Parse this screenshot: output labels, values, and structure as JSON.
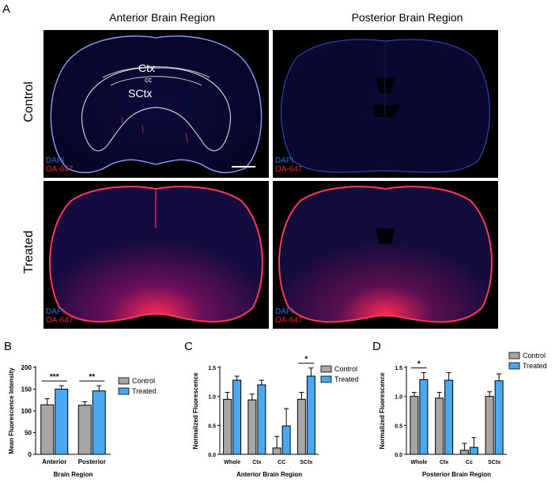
{
  "figure": {
    "panel_a": {
      "letter": "A",
      "col_titles": [
        "Anterior Brain Region",
        "Posterior Brain Region"
      ],
      "row_labels": [
        "Control",
        "Treated"
      ],
      "stain_dapi": "DAPI",
      "stain_oa": "OA-647",
      "regions": {
        "ctx": "Ctx",
        "cc": "cc",
        "sctx": "SCtx"
      },
      "colors": {
        "dapi": "#2f6fe0",
        "oa": "#e8232e"
      }
    }
  },
  "chart_data": [
    {
      "type": "bar",
      "panel": "B",
      "categories": [
        "Anterior",
        "Posterior"
      ],
      "series": [
        {
          "name": "Control",
          "values": [
            114,
            113
          ],
          "errors": [
            14,
            8
          ],
          "color": "#a6a6a6"
        },
        {
          "name": "Treated",
          "values": [
            150,
            146
          ],
          "errors": [
            8,
            12
          ],
          "color": "#4aa8f0"
        }
      ],
      "xlabel": "Brain Region",
      "ylabel": "Mean Fluorescence Intensity",
      "ylim": [
        0,
        200
      ],
      "yticks": [
        "0",
        "50",
        "100",
        "150",
        "200"
      ],
      "significance": [
        "***",
        "**"
      ],
      "legend_placement": "right"
    },
    {
      "type": "bar",
      "panel": "C",
      "categories": [
        "Whole",
        "Ctx",
        "CC",
        "SCtx"
      ],
      "series": [
        {
          "name": "Control",
          "values": [
            0.95,
            0.94,
            0.11,
            0.95
          ],
          "errors": [
            0.12,
            0.1,
            0.2,
            0.12
          ],
          "color": "#a6a6a6"
        },
        {
          "name": "Treated",
          "values": [
            1.28,
            1.2,
            0.49,
            1.35
          ],
          "errors": [
            0.07,
            0.08,
            0.3,
            0.14
          ],
          "color": "#4aa8f0"
        }
      ],
      "xlabel": "Anterior Brain Region",
      "ylabel": "Normalized Fluorescence",
      "ylim": [
        0,
        1.5
      ],
      "yticks": [
        "0.0",
        "0.5",
        "1.0",
        "1.5"
      ],
      "significance": [
        "",
        "",
        "",
        "*"
      ],
      "legend_placement": "top-right"
    },
    {
      "type": "bar",
      "panel": "D",
      "categories": [
        "Whole",
        "Ctx",
        "Cc",
        "SCtx"
      ],
      "series": [
        {
          "name": "Control",
          "values": [
            1.0,
            0.97,
            0.07,
            1.0
          ],
          "errors": [
            0.07,
            0.1,
            0.12,
            0.08
          ],
          "color": "#a6a6a6"
        },
        {
          "name": "Treated",
          "values": [
            1.29,
            1.28,
            0.12,
            1.27
          ],
          "errors": [
            0.12,
            0.13,
            0.17,
            0.12
          ],
          "color": "#4aa8f0"
        }
      ],
      "xlabel": "Posterior Brain Region",
      "ylabel": "Normalized Fluorescence",
      "ylim": [
        0,
        1.5
      ],
      "yticks": [
        "0.0",
        "0.5",
        "1.0",
        "1.5"
      ],
      "significance": [
        "*",
        "",
        "",
        ""
      ],
      "legend_placement": "top-right"
    }
  ]
}
